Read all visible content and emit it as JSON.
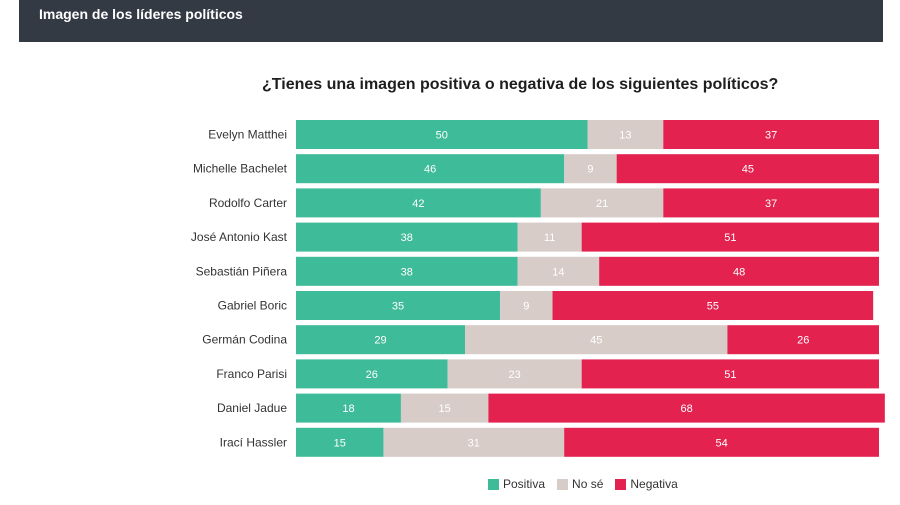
{
  "header": {
    "title": "Imagen de los líderes políticos",
    "background": "#343a44"
  },
  "chart_data": {
    "type": "bar",
    "orientation": "horizontal-stacked-100",
    "title": "¿Tienes una imagen positiva o negativa de los siguientes políticos?",
    "categories": [
      "Evelyn Matthei",
      "Michelle Bachelet",
      "Rodolfo Carter",
      "José Antonio Kast",
      "Sebastián Piñera",
      "Gabriel Boric",
      "Germán Codina",
      "Franco Parisi",
      "Daniel Jadue",
      "Irací Hassler"
    ],
    "series": [
      {
        "name": "Positiva",
        "color": "#3ebb98",
        "values": [
          50,
          46,
          42,
          38,
          38,
          35,
          29,
          26,
          18,
          15
        ]
      },
      {
        "name": "No sé",
        "color": "#d7ccc8",
        "values": [
          13,
          9,
          21,
          11,
          14,
          9,
          45,
          23,
          15,
          31
        ]
      },
      {
        "name": "Negativa",
        "color": "#e3224f",
        "values": [
          37,
          45,
          37,
          51,
          48,
          55,
          26,
          51,
          68,
          54
        ]
      }
    ],
    "xlim": [
      0,
      100
    ],
    "legend_position": "bottom"
  }
}
